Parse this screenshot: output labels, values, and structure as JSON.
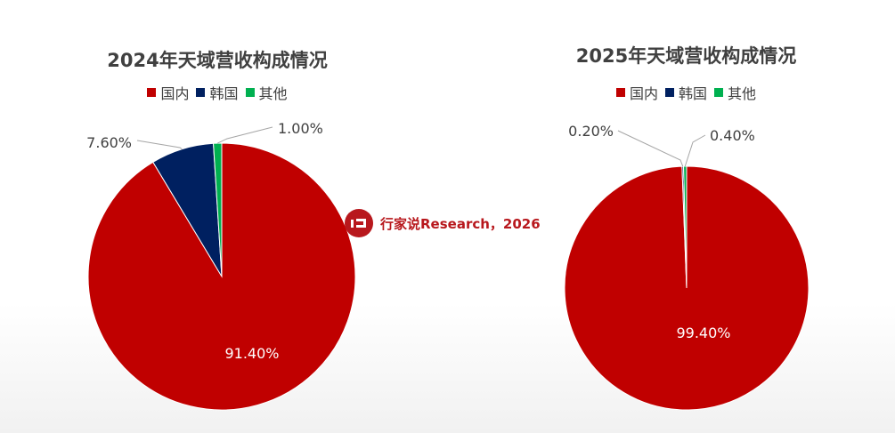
{
  "watermark": {
    "text": "行家说Research，2026",
    "logo": "hangjiashuo-logo"
  },
  "colors": {
    "domestic": "#C00000",
    "korea": "#002060",
    "other": "#00B050"
  },
  "chart_data": [
    {
      "type": "pie",
      "title": "2024年天域营收构成情况",
      "legend": [
        "国内",
        "韩国",
        "其他"
      ],
      "legend_position": "top",
      "categories": [
        "国内",
        "韩国",
        "其他"
      ],
      "values": [
        91.4,
        7.6,
        1.0
      ],
      "labels": [
        "91.40%",
        "7.60%",
        "1.00%"
      ]
    },
    {
      "type": "pie",
      "title": "2025年天域营收构成情况",
      "legend": [
        "国内",
        "韩国",
        "其他"
      ],
      "legend_position": "top",
      "categories": [
        "国内",
        "韩国",
        "其他"
      ],
      "values": [
        99.4,
        0.2,
        0.4
      ],
      "labels": [
        "99.40%",
        "0.20%",
        "0.40%"
      ]
    }
  ]
}
